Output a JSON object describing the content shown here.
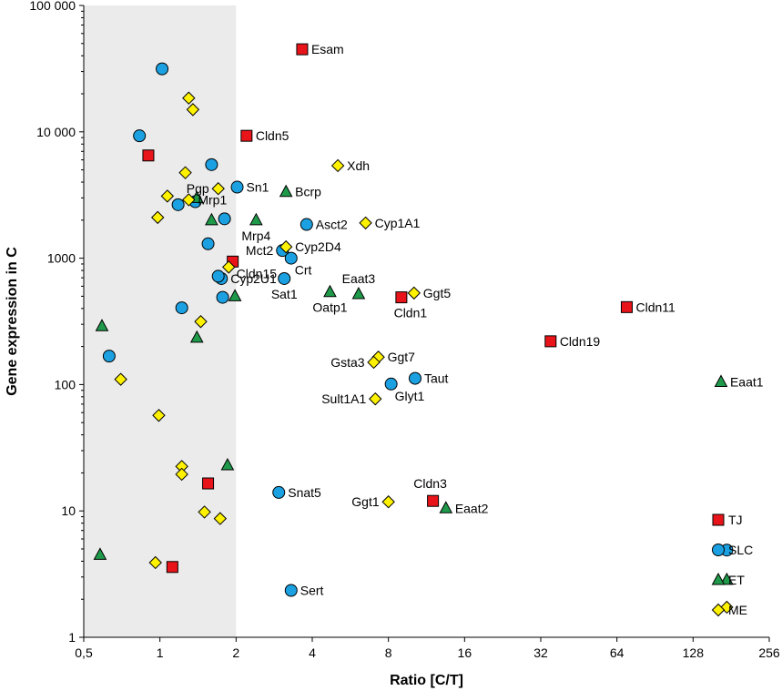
{
  "chart_data": {
    "type": "scatter",
    "xlabel": "Ratio [C/T]",
    "ylabel": "Gene expression in C",
    "xscale": "log2",
    "yscale": "log10",
    "xlim": [
      0.5,
      256
    ],
    "ylim": [
      1,
      100000
    ],
    "shaded_region": [
      0.5,
      2
    ],
    "x_ticks": [
      0.5,
      1,
      2,
      4,
      8,
      16,
      32,
      64,
      128,
      256
    ],
    "x_tick_labels": [
      "0,5",
      "1",
      "2",
      "4",
      "8",
      "16",
      "32",
      "64",
      "128",
      "256"
    ],
    "y_ticks": [
      1,
      10,
      100,
      1000,
      10000,
      100000
    ],
    "y_tick_labels": [
      "1",
      "10",
      "100",
      "1000",
      "10 000",
      "100 000"
    ],
    "colors": {
      "TJ": "#e8141a",
      "SLC": "#1ba1e2",
      "ET": "#1f9a4a",
      "ME": "#fff200",
      "shade": "#ebebeb"
    },
    "series": [
      {
        "name": "TJ",
        "marker": "square",
        "points": [
          {
            "x": 3.65,
            "y": 45000,
            "label": "Esam",
            "pos": "right"
          },
          {
            "x": 2.2,
            "y": 9300,
            "label": "Cldn5",
            "pos": "right"
          },
          {
            "x": 1.94,
            "y": 940,
            "label": "Cldn15",
            "pos": "below-right"
          },
          {
            "x": 9.0,
            "y": 490,
            "label": "Cldn1",
            "pos": "below-left"
          },
          {
            "x": 70,
            "y": 410,
            "label": "Cldn11",
            "pos": "right"
          },
          {
            "x": 35,
            "y": 220,
            "label": "Cldn19",
            "pos": "right"
          },
          {
            "x": 12,
            "y": 12,
            "label": "Cldn3",
            "pos": "above-right"
          },
          {
            "x": 0.9,
            "y": 6500,
            "label": "",
            "pos": "none"
          },
          {
            "x": 1.55,
            "y": 16.5,
            "label": "",
            "pos": "none"
          },
          {
            "x": 1.12,
            "y": 3.6,
            "label": "",
            "pos": "none"
          }
        ]
      },
      {
        "name": "SLC",
        "marker": "circle",
        "points": [
          {
            "x": 2.02,
            "y": 3650,
            "label": "Sn1",
            "pos": "right"
          },
          {
            "x": 3.8,
            "y": 1850,
            "label": "Asct2",
            "pos": "right"
          },
          {
            "x": 3.05,
            "y": 1150,
            "label": "Mct2",
            "pos": "left"
          },
          {
            "x": 3.3,
            "y": 1000,
            "label": "Crt",
            "pos": "below-right"
          },
          {
            "x": 3.1,
            "y": 690,
            "label": "Sat1",
            "pos": "below"
          },
          {
            "x": 1.75,
            "y": 690,
            "label": "Cyp2U1",
            "pos": "right"
          },
          {
            "x": 10.2,
            "y": 112,
            "label": "Taut",
            "pos": "right"
          },
          {
            "x": 8.2,
            "y": 101,
            "label": "Glyt1",
            "pos": "below-right"
          },
          {
            "x": 2.95,
            "y": 14,
            "label": "Snat5",
            "pos": "right"
          },
          {
            "x": 3.3,
            "y": 2.35,
            "label": "Sert",
            "pos": "right"
          },
          {
            "x": 1.02,
            "y": 31500,
            "label": "",
            "pos": "none"
          },
          {
            "x": 0.83,
            "y": 9300,
            "label": "",
            "pos": "none"
          },
          {
            "x": 1.6,
            "y": 5500,
            "label": "",
            "pos": "none"
          },
          {
            "x": 1.38,
            "y": 2800,
            "label": "",
            "pos": "none"
          },
          {
            "x": 1.18,
            "y": 2650,
            "label": "",
            "pos": "none"
          },
          {
            "x": 1.8,
            "y": 2050,
            "label": "",
            "pos": "none"
          },
          {
            "x": 1.55,
            "y": 1300,
            "label": "",
            "pos": "none"
          },
          {
            "x": 1.7,
            "y": 720,
            "label": "",
            "pos": "none"
          },
          {
            "x": 1.77,
            "y": 490,
            "label": "",
            "pos": "none"
          },
          {
            "x": 1.22,
            "y": 405,
            "label": "",
            "pos": "none"
          },
          {
            "x": 0.63,
            "y": 168,
            "label": "",
            "pos": "none"
          },
          {
            "x": 174,
            "y": 4.9,
            "label": "",
            "pos": "none"
          }
        ]
      },
      {
        "name": "ET",
        "marker": "triangle",
        "points": [
          {
            "x": 3.15,
            "y": 3350,
            "label": "Bcrp",
            "pos": "right"
          },
          {
            "x": 2.4,
            "y": 2000,
            "label": "Mrp4",
            "pos": "below"
          },
          {
            "x": 4.7,
            "y": 540,
            "label": "Oatp1",
            "pos": "below"
          },
          {
            "x": 6.1,
            "y": 520,
            "label": "Eaat3",
            "pos": "above"
          },
          {
            "x": 165,
            "y": 105,
            "label": "Eaat1",
            "pos": "right"
          },
          {
            "x": 13.5,
            "y": 10.5,
            "label": "Eaat2",
            "pos": "right"
          },
          {
            "x": 1.4,
            "y": 3000,
            "label": "",
            "pos": "none"
          },
          {
            "x": 1.6,
            "y": 2000,
            "label": "",
            "pos": "none"
          },
          {
            "x": 1.98,
            "y": 500,
            "label": "",
            "pos": "none"
          },
          {
            "x": 0.59,
            "y": 290,
            "label": "",
            "pos": "none"
          },
          {
            "x": 1.4,
            "y": 235,
            "label": "",
            "pos": "none"
          },
          {
            "x": 1.85,
            "y": 23,
            "label": "",
            "pos": "none"
          },
          {
            "x": 0.58,
            "y": 4.5,
            "label": "",
            "pos": "none"
          },
          {
            "x": 174,
            "y": 2.85,
            "label": "",
            "pos": "none"
          }
        ]
      },
      {
        "name": "ME",
        "marker": "diamond",
        "points": [
          {
            "x": 5.05,
            "y": 5400,
            "label": "Xdh",
            "pos": "right"
          },
          {
            "x": 1.3,
            "y": 2900,
            "label": "Mrp1",
            "pos": "right"
          },
          {
            "x": 1.7,
            "y": 3550,
            "label": "Pgp",
            "pos": "left"
          },
          {
            "x": 6.5,
            "y": 1900,
            "label": "Cyp1A1",
            "pos": "right"
          },
          {
            "x": 3.15,
            "y": 1230,
            "label": "Cyp2D4",
            "pos": "right"
          },
          {
            "x": 10.1,
            "y": 530,
            "label": "Ggt5",
            "pos": "right"
          },
          {
            "x": 7.3,
            "y": 165,
            "label": "Ggt7",
            "pos": "right"
          },
          {
            "x": 7.0,
            "y": 150,
            "label": "Gsta3",
            "pos": "left"
          },
          {
            "x": 7.1,
            "y": 77,
            "label": "Sult1A1",
            "pos": "left"
          },
          {
            "x": 8.0,
            "y": 11.8,
            "label": "Ggt1",
            "pos": "left"
          },
          {
            "x": 1.3,
            "y": 18500,
            "label": "",
            "pos": "none"
          },
          {
            "x": 1.35,
            "y": 15000,
            "label": "",
            "pos": "none"
          },
          {
            "x": 1.26,
            "y": 4750,
            "label": "",
            "pos": "none"
          },
          {
            "x": 1.07,
            "y": 3100,
            "label": "",
            "pos": "none"
          },
          {
            "x": 0.98,
            "y": 2100,
            "label": "",
            "pos": "none"
          },
          {
            "x": 1.87,
            "y": 850,
            "label": "",
            "pos": "none"
          },
          {
            "x": 1.45,
            "y": 315,
            "label": "",
            "pos": "none"
          },
          {
            "x": 0.7,
            "y": 110,
            "label": "",
            "pos": "none"
          },
          {
            "x": 0.99,
            "y": 57,
            "label": "",
            "pos": "none"
          },
          {
            "x": 1.22,
            "y": 22.5,
            "label": "",
            "pos": "none"
          },
          {
            "x": 1.22,
            "y": 19.5,
            "label": "",
            "pos": "none"
          },
          {
            "x": 1.5,
            "y": 9.8,
            "label": "",
            "pos": "none"
          },
          {
            "x": 1.73,
            "y": 8.7,
            "label": "",
            "pos": "none"
          },
          {
            "x": 0.96,
            "y": 3.9,
            "label": "",
            "pos": "none"
          },
          {
            "x": 174,
            "y": 1.73,
            "label": "",
            "pos": "none"
          }
        ]
      }
    ],
    "legend": [
      {
        "name": "TJ",
        "marker": "square"
      },
      {
        "name": "SLC",
        "marker": "circle"
      },
      {
        "name": "ET",
        "marker": "triangle"
      },
      {
        "name": "ME",
        "marker": "diamond"
      }
    ]
  }
}
